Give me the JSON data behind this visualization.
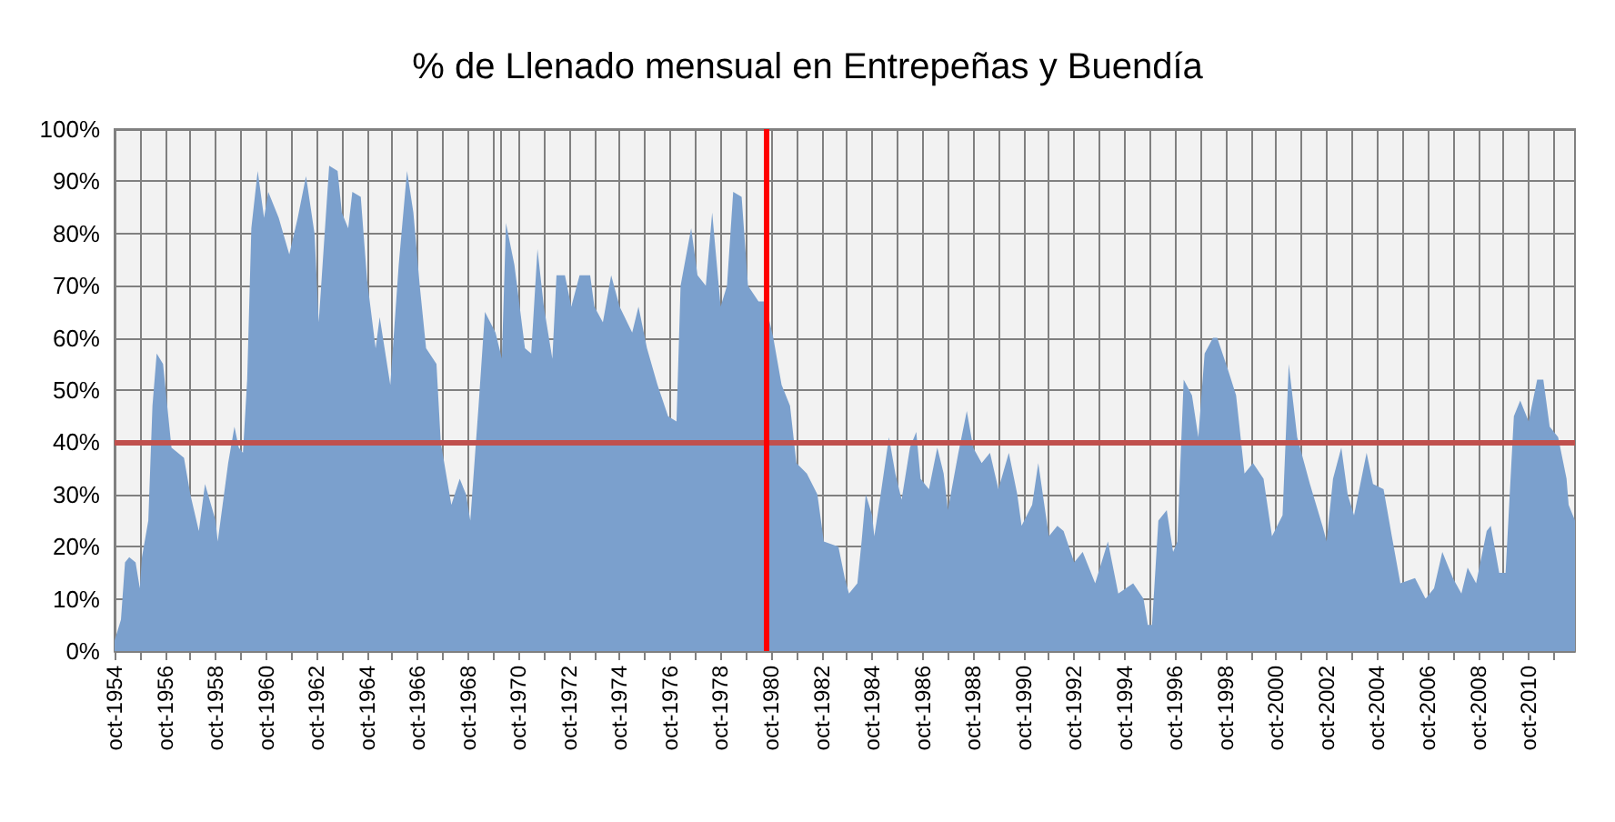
{
  "chart_data": {
    "type": "area",
    "title": "% de Llenado mensual en Entrepeñas y Buendía",
    "x": [
      "1954-10",
      "1955-01",
      "1955-03",
      "1955-05",
      "1955-08",
      "1955-10",
      "1955-11",
      "1956-02",
      "1956-04",
      "1956-06",
      "1956-09",
      "1956-10",
      "1957-01",
      "1957-07",
      "1957-10",
      "1958-02",
      "1958-05",
      "1958-10",
      "1958-11",
      "1959-04",
      "1959-07",
      "1959-09",
      "1959-11",
      "1960-01",
      "1960-03",
      "1960-06",
      "1960-09",
      "1960-11",
      "1961-04",
      "1961-09",
      "1962-01",
      "1962-05",
      "1962-09",
      "1962-11",
      "1963-04",
      "1963-08",
      "1963-10",
      "1964-01",
      "1964-03",
      "1964-07",
      "1964-10",
      "1965-02",
      "1965-04",
      "1965-09",
      "1966-01",
      "1966-05",
      "1966-08",
      "1966-11",
      "1967-02",
      "1967-07",
      "1967-09",
      "1968-02",
      "1968-06",
      "1968-09",
      "1968-11",
      "1969-03",
      "1969-06",
      "1969-11",
      "1970-02",
      "1970-04",
      "1970-08",
      "1971-01",
      "1971-04",
      "1971-07",
      "1971-10",
      "1972-02",
      "1972-04",
      "1972-08",
      "1972-11",
      "1973-03",
      "1973-08",
      "1973-10",
      "1974-02",
      "1974-06",
      "1974-10",
      "1975-04",
      "1975-07",
      "1975-11",
      "1976-04",
      "1976-09",
      "1977-01",
      "1977-03",
      "1977-08",
      "1977-11",
      "1978-03",
      "1978-06",
      "1978-10",
      "1979-01",
      "1979-04",
      "1979-08",
      "1979-11",
      "1980-04",
      "1980-07",
      "1980-11",
      "1981-03",
      "1981-07",
      "1981-10",
      "1982-03",
      "1982-08",
      "1982-11",
      "1983-06",
      "1983-09",
      "1983-11",
      "1984-03",
      "1984-05",
      "1984-07",
      "1984-10",
      "1984-11",
      "1985-02",
      "1985-06",
      "1985-09",
      "1985-12",
      "1986-04",
      "1986-07",
      "1986-09",
      "1987-01",
      "1987-05",
      "1987-08",
      "1987-10",
      "1988-03",
      "1988-07",
      "1988-10",
      "1989-02",
      "1989-06",
      "1989-10",
      "1990-03",
      "1990-07",
      "1990-09",
      "1991-02",
      "1991-05",
      "1991-10",
      "1992-02",
      "1992-05",
      "1992-10",
      "1993-02",
      "1993-08",
      "1994-02",
      "1994-07",
      "1995-02",
      "1995-07",
      "1995-09",
      "1995-11",
      "1996-02",
      "1996-06",
      "1996-09",
      "1996-11",
      "1997-02",
      "1997-06",
      "1997-09",
      "1997-12",
      "1998-04",
      "1998-06",
      "1998-11",
      "1999-03",
      "1999-07",
      "1999-11",
      "2000-04",
      "2000-08",
      "2001-01",
      "2001-04",
      "2001-08",
      "2002-02",
      "2002-08",
      "2002-10",
      "2003-01",
      "2003-05",
      "2003-08",
      "2003-11",
      "2004-05",
      "2004-08",
      "2005-01",
      "2005-05",
      "2005-09",
      "2006-04",
      "2006-09",
      "2007-01",
      "2007-05",
      "2007-10",
      "2008-02",
      "2008-05",
      "2008-09",
      "2009-02",
      "2009-04",
      "2009-08",
      "2009-11",
      "2010-03",
      "2010-06",
      "2010-10",
      "2011-02",
      "2011-05",
      "2011-08",
      "2011-12",
      "2012-04",
      "2012-05",
      "2012-08"
    ],
    "values": [
      2,
      6,
      17,
      18,
      17,
      12,
      18,
      25,
      47,
      57,
      55,
      51,
      39,
      37,
      30,
      23,
      32,
      25,
      21,
      36,
      43,
      39,
      38,
      52,
      81,
      92,
      83,
      88,
      83,
      76,
      83,
      91,
      80,
      63,
      93,
      92,
      84,
      81,
      88,
      87,
      71,
      58,
      64,
      51,
      74,
      92,
      84,
      70,
      58,
      55,
      40,
      28,
      33,
      30,
      25,
      47,
      65,
      61,
      56,
      82,
      74,
      58,
      57,
      77,
      66,
      56,
      72,
      72,
      66,
      72,
      72,
      66,
      63,
      72,
      66,
      61,
      66,
      58,
      51,
      45,
      44,
      70,
      81,
      72,
      70,
      84,
      66,
      70,
      88,
      87,
      70,
      67,
      67,
      60,
      51,
      47,
      36,
      34,
      30,
      21,
      20,
      14,
      11,
      13,
      21,
      30,
      26,
      22,
      30,
      41,
      34,
      29,
      39,
      42,
      33,
      31,
      39,
      34,
      27,
      38,
      46,
      39,
      36,
      38,
      31,
      38,
      30,
      24,
      28,
      36,
      22,
      24,
      23,
      17,
      19,
      13,
      21,
      11,
      13,
      10,
      5,
      5,
      25,
      27,
      19,
      21,
      52,
      49,
      41,
      57,
      60,
      60,
      54,
      49,
      34,
      36,
      33,
      22,
      26,
      55,
      41,
      32,
      24,
      21,
      33,
      39,
      30,
      26,
      38,
      32,
      31,
      22,
      13,
      14,
      10,
      12,
      19,
      14,
      11,
      16,
      13,
      23,
      24,
      15,
      15,
      45,
      48,
      44,
      52,
      52,
      43,
      41,
      33,
      28,
      25
    ],
    "color": "#7ba0cd",
    "xlim": [
      "1954-10",
      "2012-08"
    ],
    "xticks": [
      {
        "value": "1954-10",
        "label": "oct-1954"
      },
      {
        "value": "1955-10",
        "label": null
      },
      {
        "value": "1956-10",
        "label": "oct-1956"
      },
      {
        "value": "1957-10",
        "label": null
      },
      {
        "value": "1958-10",
        "label": "oct-1958"
      },
      {
        "value": "1959-10",
        "label": null
      },
      {
        "value": "1960-10",
        "label": "oct-1960"
      },
      {
        "value": "1961-10",
        "label": null
      },
      {
        "value": "1962-10",
        "label": "oct-1962"
      },
      {
        "value": "1963-10",
        "label": null
      },
      {
        "value": "1964-10",
        "label": "oct-1964"
      },
      {
        "value": "1965-10",
        "label": null
      },
      {
        "value": "1966-10",
        "label": "oct-1966"
      },
      {
        "value": "1967-10",
        "label": null
      },
      {
        "value": "1968-10",
        "label": "oct-1968"
      },
      {
        "value": "1969-10",
        "label": null
      },
      {
        "value": "1970-10",
        "label": "oct-1970"
      },
      {
        "value": "1971-10",
        "label": null
      },
      {
        "value": "1972-10",
        "label": "oct-1972"
      },
      {
        "value": "1973-10",
        "label": null
      },
      {
        "value": "1974-10",
        "label": "oct-1974"
      },
      {
        "value": "1975-10",
        "label": null
      },
      {
        "value": "1976-10",
        "label": "oct-1976"
      },
      {
        "value": "1977-10",
        "label": null
      },
      {
        "value": "1978-10",
        "label": "oct-1978"
      },
      {
        "value": "1979-10",
        "label": null
      },
      {
        "value": "1980-10",
        "label": "oct-1980"
      },
      {
        "value": "1981-10",
        "label": null
      },
      {
        "value": "1982-10",
        "label": "oct-1982"
      },
      {
        "value": "1983-10",
        "label": null
      },
      {
        "value": "1984-10",
        "label": "oct-1984"
      },
      {
        "value": "1985-10",
        "label": null
      },
      {
        "value": "1986-10",
        "label": "oct-1986"
      },
      {
        "value": "1987-10",
        "label": null
      },
      {
        "value": "1988-10",
        "label": "oct-1988"
      },
      {
        "value": "1989-10",
        "label": null
      },
      {
        "value": "1990-10",
        "label": "oct-1990"
      },
      {
        "value": "1991-10",
        "label": null
      },
      {
        "value": "1992-10",
        "label": "oct-1992"
      },
      {
        "value": "1993-10",
        "label": null
      },
      {
        "value": "1994-10",
        "label": "oct-1994"
      },
      {
        "value": "1995-10",
        "label": null
      },
      {
        "value": "1996-10",
        "label": "oct-1996"
      },
      {
        "value": "1997-10",
        "label": null
      },
      {
        "value": "1998-10",
        "label": "oct-1998"
      },
      {
        "value": "1999-10",
        "label": null
      },
      {
        "value": "2000-10",
        "label": "oct-2000"
      },
      {
        "value": "2001-10",
        "label": null
      },
      {
        "value": "2002-10",
        "label": "oct-2002"
      },
      {
        "value": "2003-10",
        "label": null
      },
      {
        "value": "2004-10",
        "label": "oct-2004"
      },
      {
        "value": "2005-10",
        "label": null
      },
      {
        "value": "2006-10",
        "label": "oct-2006"
      },
      {
        "value": "2007-10",
        "label": null
      },
      {
        "value": "2008-10",
        "label": "oct-2008"
      },
      {
        "value": "2009-10",
        "label": null
      },
      {
        "value": "2010-10",
        "label": "oct-2010"
      },
      {
        "value": "2011-10",
        "label": null
      }
    ],
    "ylim": [
      0,
      100
    ],
    "yticks": [
      {
        "value": 0,
        "label": "0%"
      },
      {
        "value": 10,
        "label": "10%"
      },
      {
        "value": 20,
        "label": "20%"
      },
      {
        "value": 30,
        "label": "30%"
      },
      {
        "value": 40,
        "label": "40%"
      },
      {
        "value": 50,
        "label": "50%"
      },
      {
        "value": 60,
        "label": "60%"
      },
      {
        "value": 70,
        "label": "70%"
      },
      {
        "value": 80,
        "label": "80%"
      },
      {
        "value": 90,
        "label": "90%"
      },
      {
        "value": 100,
        "label": "100%"
      }
    ],
    "ref_lines": [
      {
        "axis": "y",
        "value": 40,
        "color": "#c0504d"
      },
      {
        "axis": "x",
        "value": "1980-08",
        "color": "#ff0000"
      }
    ],
    "grid": true,
    "marker": "none"
  }
}
